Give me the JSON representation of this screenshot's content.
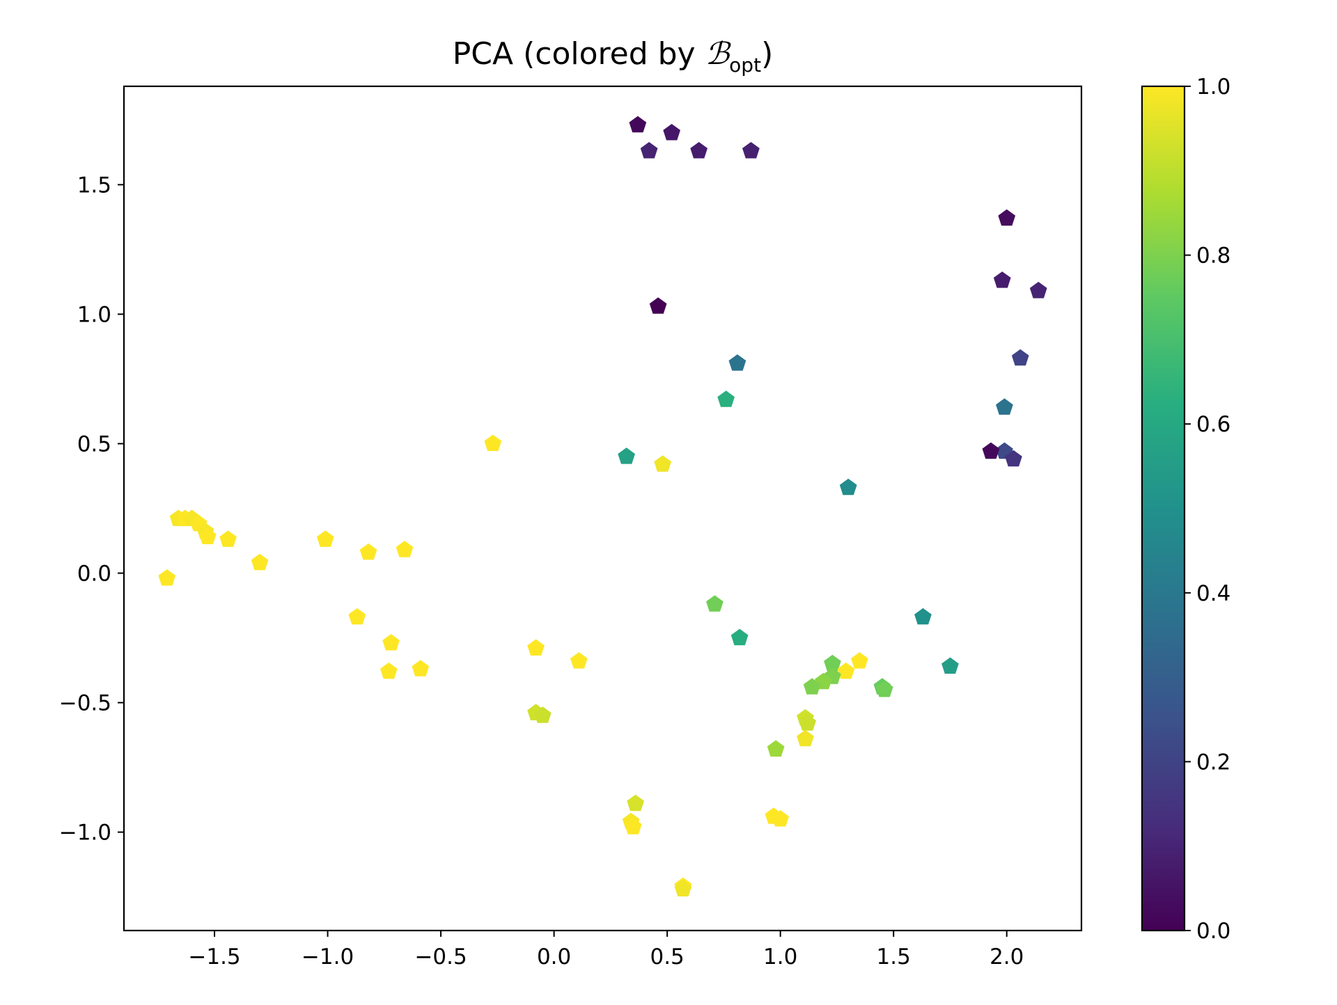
{
  "chart_data": {
    "type": "scatter",
    "title": {
      "prefix": "PCA (colored by ",
      "symbol": "ℬ",
      "subscript": "opt",
      "suffix": ")"
    },
    "xlabel": "",
    "ylabel": "",
    "xlim": [
      -1.9,
      2.33
    ],
    "ylim": [
      -1.38,
      1.88
    ],
    "xticks": [
      -1.5,
      -1.0,
      -0.5,
      0.0,
      0.5,
      1.0,
      1.5,
      2.0
    ],
    "xtick_labels": [
      "−1.5",
      "−1.0",
      "−0.5",
      "0.0",
      "0.5",
      "1.0",
      "1.5",
      "2.0"
    ],
    "yticks": [
      -1.0,
      -0.5,
      0.0,
      0.5,
      1.0,
      1.5
    ],
    "ytick_labels": [
      "−1.0",
      "−0.5",
      "0.0",
      "0.5",
      "1.0",
      "1.5"
    ],
    "grid": false,
    "marker": "pentagon",
    "colormap": "viridis",
    "colorbar": {
      "range": [
        0.0,
        1.0
      ],
      "ticks": [
        0.0,
        0.2,
        0.4,
        0.6,
        0.8,
        1.0
      ],
      "tick_labels": [
        "0.0",
        "0.2",
        "0.4",
        "0.6",
        "0.8",
        "1.0"
      ]
    },
    "points": [
      {
        "x": 0.37,
        "y": 1.73,
        "c": 0.02
      },
      {
        "x": 0.52,
        "y": 1.7,
        "c": 0.06
      },
      {
        "x": 0.42,
        "y": 1.63,
        "c": 0.1
      },
      {
        "x": 0.64,
        "y": 1.63,
        "c": 0.08
      },
      {
        "x": 0.87,
        "y": 1.63,
        "c": 0.09
      },
      {
        "x": 2.0,
        "y": 1.37,
        "c": 0.03
      },
      {
        "x": 1.98,
        "y": 1.13,
        "c": 0.08
      },
      {
        "x": 2.14,
        "y": 1.09,
        "c": 0.1
      },
      {
        "x": 0.46,
        "y": 1.03,
        "c": 0.0
      },
      {
        "x": 2.06,
        "y": 0.83,
        "c": 0.2
      },
      {
        "x": 0.81,
        "y": 0.81,
        "c": 0.38
      },
      {
        "x": 0.76,
        "y": 0.67,
        "c": 0.63
      },
      {
        "x": 1.99,
        "y": 0.64,
        "c": 0.38
      },
      {
        "x": -0.27,
        "y": 0.5,
        "c": 1.0
      },
      {
        "x": 1.99,
        "y": 0.47,
        "c": 0.22
      },
      {
        "x": 1.93,
        "y": 0.47,
        "c": 0.02
      },
      {
        "x": 2.03,
        "y": 0.44,
        "c": 0.15
      },
      {
        "x": 0.32,
        "y": 0.45,
        "c": 0.57
      },
      {
        "x": 0.48,
        "y": 0.42,
        "c": 0.98
      },
      {
        "x": 1.3,
        "y": 0.33,
        "c": 0.48
      },
      {
        "x": -1.66,
        "y": 0.21,
        "c": 0.99
      },
      {
        "x": -1.63,
        "y": 0.21,
        "c": 1.0
      },
      {
        "x": -1.6,
        "y": 0.21,
        "c": 0.99
      },
      {
        "x": -1.57,
        "y": 0.19,
        "c": 1.0
      },
      {
        "x": -1.54,
        "y": 0.16,
        "c": 0.99
      },
      {
        "x": -1.53,
        "y": 0.14,
        "c": 1.0
      },
      {
        "x": -1.44,
        "y": 0.13,
        "c": 1.0
      },
      {
        "x": -1.01,
        "y": 0.13,
        "c": 1.0
      },
      {
        "x": -0.82,
        "y": 0.08,
        "c": 1.0
      },
      {
        "x": -0.66,
        "y": 0.09,
        "c": 1.0
      },
      {
        "x": -1.3,
        "y": 0.04,
        "c": 1.0
      },
      {
        "x": -1.71,
        "y": -0.02,
        "c": 1.0
      },
      {
        "x": 0.71,
        "y": -0.12,
        "c": 0.78
      },
      {
        "x": 1.63,
        "y": -0.17,
        "c": 0.5
      },
      {
        "x": -0.87,
        "y": -0.17,
        "c": 1.0
      },
      {
        "x": 0.82,
        "y": -0.25,
        "c": 0.62
      },
      {
        "x": -0.72,
        "y": -0.27,
        "c": 1.0
      },
      {
        "x": -0.08,
        "y": -0.29,
        "c": 1.0
      },
      {
        "x": 0.11,
        "y": -0.34,
        "c": 1.0
      },
      {
        "x": 1.23,
        "y": -0.35,
        "c": 0.78
      },
      {
        "x": 1.35,
        "y": -0.34,
        "c": 1.0
      },
      {
        "x": 1.29,
        "y": -0.38,
        "c": 1.0
      },
      {
        "x": 1.75,
        "y": -0.36,
        "c": 0.55
      },
      {
        "x": -0.59,
        "y": -0.37,
        "c": 1.0
      },
      {
        "x": -0.73,
        "y": -0.38,
        "c": 1.0
      },
      {
        "x": 1.23,
        "y": -0.4,
        "c": 0.8
      },
      {
        "x": 1.19,
        "y": -0.42,
        "c": 0.82
      },
      {
        "x": 1.14,
        "y": -0.44,
        "c": 0.8
      },
      {
        "x": 1.45,
        "y": -0.44,
        "c": 0.76
      },
      {
        "x": 1.46,
        "y": -0.45,
        "c": 0.78
      },
      {
        "x": -0.08,
        "y": -0.54,
        "c": 0.93
      },
      {
        "x": -0.05,
        "y": -0.55,
        "c": 0.92
      },
      {
        "x": 1.11,
        "y": -0.56,
        "c": 0.93
      },
      {
        "x": 1.12,
        "y": -0.58,
        "c": 0.92
      },
      {
        "x": 1.11,
        "y": -0.64,
        "c": 0.98
      },
      {
        "x": 0.98,
        "y": -0.68,
        "c": 0.85
      },
      {
        "x": 0.36,
        "y": -0.89,
        "c": 0.94
      },
      {
        "x": 0.97,
        "y": -0.94,
        "c": 1.0
      },
      {
        "x": 1.0,
        "y": -0.95,
        "c": 1.0
      },
      {
        "x": 0.34,
        "y": -0.96,
        "c": 0.99
      },
      {
        "x": 0.35,
        "y": -0.98,
        "c": 1.0
      },
      {
        "x": 0.57,
        "y": -1.21,
        "c": 1.0
      },
      {
        "x": 0.57,
        "y": -1.22,
        "c": 0.98
      }
    ]
  }
}
